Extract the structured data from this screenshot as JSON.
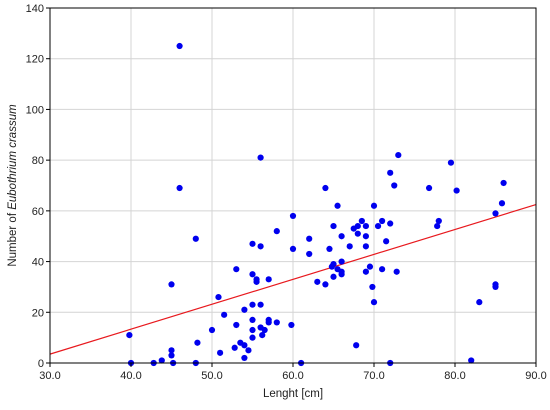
{
  "chart_data": {
    "type": "scatter",
    "title": "",
    "xlabel": "Lenght [cm]",
    "ylabel_prefix": "Number of ",
    "ylabel_italic": "Eubothrium crassum",
    "xlim": [
      30,
      90
    ],
    "ylim": [
      0,
      140
    ],
    "xticks": [
      30,
      40,
      50,
      60,
      70,
      80,
      90
    ],
    "xtick_labels": [
      "30.0",
      "40.0",
      "50.0",
      "60.0",
      "70.0",
      "80.0",
      "90.0"
    ],
    "yticks": [
      0,
      20,
      40,
      60,
      80,
      100,
      120,
      140
    ],
    "ytick_labels": [
      "0",
      "20",
      "40",
      "60",
      "80",
      "100",
      "120",
      "140"
    ],
    "grid": true,
    "point_color": "#0000ee",
    "line_color": "#e8191e",
    "regression_line": {
      "x": [
        30,
        90
      ],
      "y": [
        3.5,
        62.5
      ]
    },
    "points": [
      [
        39.8,
        11
      ],
      [
        40,
        0
      ],
      [
        42.8,
        0
      ],
      [
        43.8,
        1
      ],
      [
        45,
        3
      ],
      [
        45,
        5
      ],
      [
        45,
        31
      ],
      [
        45.2,
        0
      ],
      [
        46,
        125
      ],
      [
        46,
        69
      ],
      [
        48,
        49
      ],
      [
        48.2,
        8
      ],
      [
        48,
        0
      ],
      [
        50,
        13
      ],
      [
        50.8,
        26
      ],
      [
        51,
        4
      ],
      [
        51.5,
        19
      ],
      [
        52.8,
        6
      ],
      [
        53,
        15
      ],
      [
        53,
        37
      ],
      [
        53.5,
        8
      ],
      [
        54,
        7
      ],
      [
        54,
        21
      ],
      [
        54,
        2
      ],
      [
        54.5,
        5
      ],
      [
        55,
        10
      ],
      [
        55,
        13
      ],
      [
        55,
        17
      ],
      [
        55,
        23
      ],
      [
        55,
        35
      ],
      [
        55,
        47
      ],
      [
        55.5,
        32
      ],
      [
        55.5,
        33
      ],
      [
        56,
        81
      ],
      [
        56,
        46
      ],
      [
        56,
        23
      ],
      [
        56,
        14
      ],
      [
        56.2,
        11
      ],
      [
        56.5,
        13
      ],
      [
        57,
        16
      ],
      [
        57,
        17
      ],
      [
        57,
        33
      ],
      [
        58,
        16
      ],
      [
        58,
        52
      ],
      [
        59.8,
        15
      ],
      [
        60,
        45
      ],
      [
        60,
        58
      ],
      [
        61,
        0
      ],
      [
        62,
        49
      ],
      [
        62,
        43
      ],
      [
        63,
        32
      ],
      [
        64,
        31
      ],
      [
        64,
        69
      ],
      [
        64.5,
        45
      ],
      [
        64.8,
        38
      ],
      [
        65,
        34
      ],
      [
        65,
        39
      ],
      [
        65,
        54
      ],
      [
        65.5,
        37
      ],
      [
        65.5,
        62
      ],
      [
        66,
        36
      ],
      [
        66,
        40
      ],
      [
        66,
        50
      ],
      [
        66,
        35
      ],
      [
        67,
        46
      ],
      [
        67.5,
        53
      ],
      [
        67.8,
        7
      ],
      [
        68,
        51
      ],
      [
        68,
        54
      ],
      [
        68.5,
        56
      ],
      [
        69,
        54
      ],
      [
        69,
        50
      ],
      [
        69,
        46
      ],
      [
        69,
        36
      ],
      [
        69.5,
        38
      ],
      [
        69.8,
        30
      ],
      [
        70,
        24
      ],
      [
        70,
        62
      ],
      [
        70.5,
        54
      ],
      [
        71,
        56
      ],
      [
        71,
        37
      ],
      [
        71.5,
        48
      ],
      [
        72,
        0
      ],
      [
        72,
        55
      ],
      [
        72,
        75
      ],
      [
        72.5,
        70
      ],
      [
        72.8,
        36
      ],
      [
        73,
        82
      ],
      [
        76.8,
        69
      ],
      [
        77.8,
        54
      ],
      [
        78,
        56
      ],
      [
        79.5,
        79
      ],
      [
        80.2,
        68
      ],
      [
        82,
        1
      ],
      [
        83,
        24
      ],
      [
        85,
        30
      ],
      [
        85,
        31
      ],
      [
        85,
        59
      ],
      [
        85.8,
        63
      ],
      [
        86,
        71
      ]
    ]
  }
}
